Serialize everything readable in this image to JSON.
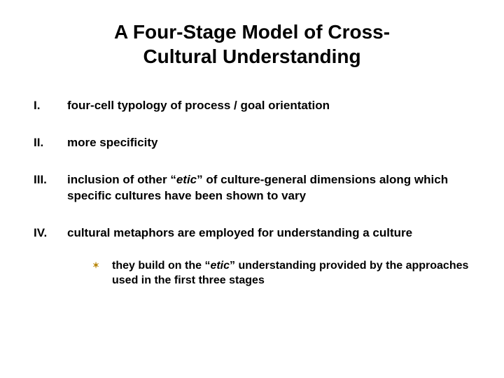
{
  "title_line1": "A Four-Stage Model of Cross-",
  "title_line2": "Cultural Understanding",
  "items": [
    {
      "roman": "I.",
      "text": "four-cell typology of process / goal orientation"
    },
    {
      "roman": "II.",
      "text": "more specificity"
    },
    {
      "roman": "III.",
      "pre": "inclusion of other “",
      "em": "etic",
      "post": "” of culture-general dimensions along which specific cultures have been shown to vary"
    },
    {
      "roman": "IV.",
      "text": "cultural metaphors are employed for understanding a culture"
    }
  ],
  "sub": {
    "bullet": "✶",
    "pre": "they build on the “",
    "em": "etic",
    "post": "” understanding provided by the approaches used in the first three stages"
  },
  "colors": {
    "text": "#000000",
    "background": "#ffffff",
    "bullet": "#b8860b"
  },
  "typography": {
    "title_fontsize": 28,
    "item_fontsize": 17,
    "sub_fontsize": 16,
    "font_family": "Verdana"
  }
}
